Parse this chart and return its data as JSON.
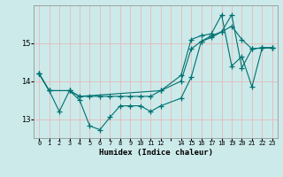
{
  "xlabel": "Humidex (Indice chaleur)",
  "bg_color": "#cceaea",
  "grid_color": "#e8b8b8",
  "line_color": "#007070",
  "xlim": [
    -0.5,
    23.5
  ],
  "ylim": [
    12.5,
    16.0
  ],
  "yticks": [
    13,
    14,
    15
  ],
  "xtick_labels": [
    "0",
    "1",
    "2",
    "3",
    "4",
    "5",
    "6",
    "7",
    "8",
    "9",
    "10",
    "11",
    "12",
    "",
    "14",
    "15",
    "16",
    "17",
    "18",
    "19",
    "20",
    "21",
    "22",
    "23"
  ],
  "series1_x": [
    0,
    1,
    2,
    3,
    4,
    5,
    6,
    7,
    8,
    9,
    10,
    11,
    12,
    14,
    15,
    16,
    17,
    18,
    19,
    20,
    21,
    22,
    23
  ],
  "series1_y": [
    14.2,
    13.75,
    13.2,
    13.75,
    13.5,
    12.82,
    12.72,
    13.05,
    13.35,
    13.35,
    13.35,
    13.2,
    13.35,
    13.55,
    14.1,
    15.05,
    15.15,
    15.3,
    15.75,
    14.35,
    14.85,
    14.88,
    14.88
  ],
  "series2_x": [
    0,
    1,
    3,
    4,
    5,
    6,
    7,
    8,
    9,
    10,
    11,
    12,
    14,
    15,
    16,
    17,
    18,
    19,
    20,
    21,
    22,
    23
  ],
  "series2_y": [
    14.2,
    13.75,
    13.75,
    13.6,
    13.6,
    13.6,
    13.6,
    13.6,
    13.6,
    13.6,
    13.6,
    13.75,
    14.0,
    14.85,
    15.05,
    15.2,
    15.3,
    15.45,
    15.1,
    14.85,
    14.88,
    14.88
  ],
  "series3_x": [
    0,
    1,
    3,
    4,
    12,
    14,
    15,
    16,
    17,
    18,
    19,
    20,
    21,
    22,
    23
  ],
  "series3_y": [
    14.2,
    13.75,
    13.75,
    13.6,
    13.75,
    14.15,
    15.1,
    15.2,
    15.25,
    15.75,
    14.4,
    14.65,
    13.85,
    14.88,
    14.88
  ]
}
